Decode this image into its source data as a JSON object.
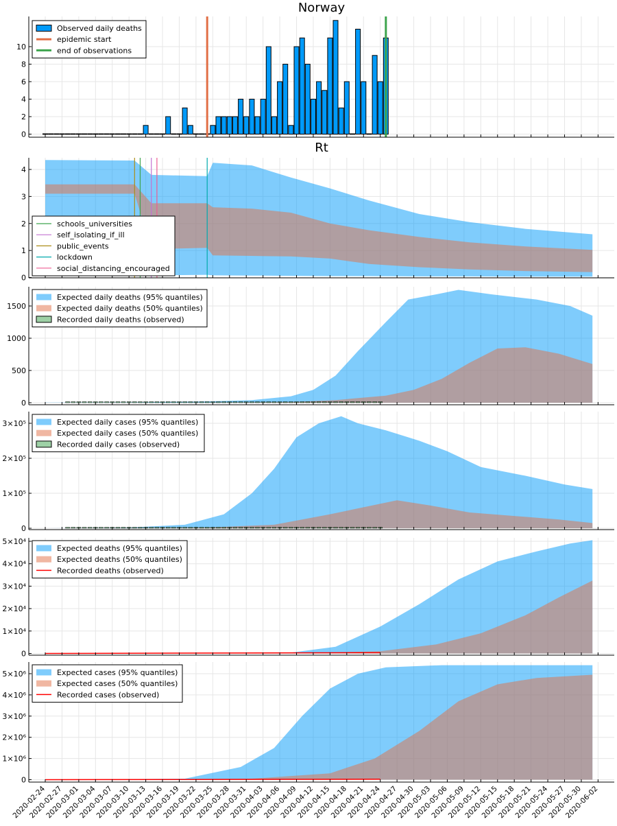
{
  "colors": {
    "blue": "#009af9",
    "salmon": "#e26f46",
    "green": "#3da44d",
    "red": "#ff0000",
    "brown_overlay": "#a78e8e",
    "grid": "#e6e6e6",
    "axis": "#000000"
  },
  "chart_data": [
    {
      "type": "bar",
      "title": "Norway",
      "legend": [
        "Observed daily deaths",
        "epidemic start",
        "end of observations"
      ],
      "legend_position": "top-left",
      "yticks": [
        "0",
        "2",
        "4",
        "6",
        "8",
        "10"
      ],
      "ylim": [
        0,
        14
      ],
      "x_start": "2020-02-24",
      "values": [
        0,
        0,
        0,
        0,
        0,
        0,
        0,
        0,
        0,
        0,
        0,
        0,
        0,
        0,
        0,
        0,
        0,
        0,
        1,
        0,
        0,
        0,
        2,
        0,
        0,
        3,
        1,
        0,
        0,
        0,
        1,
        2,
        2,
        2,
        2,
        4,
        2,
        4,
        2,
        4,
        10,
        2,
        6,
        8,
        1,
        10,
        11,
        8,
        4,
        6,
        5,
        11,
        13,
        3,
        6,
        0,
        12,
        6,
        0,
        9,
        6,
        11
      ],
      "epidemic_start": "2020-03-24",
      "end_of_observations": "2020-04-25"
    },
    {
      "type": "area",
      "title": "Rt",
      "legend": [
        "schools_universities",
        "self_isolating_if_ill",
        "public_events",
        "lockdown",
        "social_distancing_encouraged"
      ],
      "legend_position": "left",
      "yticks": [
        "0",
        "1",
        "2",
        "3",
        "4"
      ],
      "ylim": [
        0,
        4.45
      ],
      "interventions": [
        {
          "name": "schools_universities",
          "date": "2020-03-12",
          "color": "#3da44d"
        },
        {
          "name": "self_isolating_if_ill",
          "date": "2020-03-14",
          "color": "#c271d2"
        },
        {
          "name": "public_events",
          "date": "2020-03-11",
          "color": "#ac8d18"
        },
        {
          "name": "lockdown",
          "date": "2020-03-24",
          "color": "#00a9ad"
        },
        {
          "name": "social_distancing_encouraged",
          "date": "2020-03-15",
          "color": "#ed5d92"
        }
      ],
      "bands": [
        {
          "quantile": "95%",
          "dates": [
            "2020-02-24",
            "2020-03-11",
            "2020-03-14",
            "2020-03-24",
            "2020-03-25",
            "2020-04-01",
            "2020-04-08",
            "2020-04-15",
            "2020-04-22",
            "2020-05-01",
            "2020-05-10",
            "2020-05-20",
            "2020-06-01"
          ],
          "upper": [
            4.35,
            4.33,
            3.8,
            3.75,
            4.25,
            4.15,
            3.7,
            3.3,
            2.85,
            2.35,
            2.05,
            1.8,
            1.6
          ],
          "lower": [
            0.05,
            0.05,
            0.08,
            0.1,
            0.08,
            0.07,
            0.06,
            0.05,
            0.05,
            0.04,
            0.04,
            0.03,
            0.03
          ]
        },
        {
          "quantile": "50%",
          "dates": [
            "2020-02-24",
            "2020-03-11",
            "2020-03-14",
            "2020-03-24",
            "2020-03-25",
            "2020-04-01",
            "2020-04-08",
            "2020-04-15",
            "2020-04-22",
            "2020-05-01",
            "2020-05-10",
            "2020-05-20",
            "2020-06-01"
          ],
          "upper": [
            3.45,
            3.45,
            2.75,
            2.75,
            2.6,
            2.55,
            2.4,
            2.0,
            1.75,
            1.5,
            1.3,
            1.15,
            1.02
          ],
          "lower": [
            3.1,
            3.1,
            1.05,
            1.1,
            0.82,
            0.8,
            0.78,
            0.7,
            0.5,
            0.38,
            0.3,
            0.24,
            0.2
          ]
        }
      ]
    },
    {
      "type": "area",
      "legend": [
        "Expected daily deaths (95% quantiles)",
        "Expected daily deaths (50% quantiles)",
        "Recorded daily deaths (observed)"
      ],
      "legend_position": "top-left",
      "yticks": [
        "0",
        "500",
        "1000",
        "1500"
      ],
      "ylim": [
        0,
        1800
      ],
      "observed_dates": [
        "2020-02-24",
        "2020-04-25"
      ],
      "bands": [
        {
          "quantile": "95%",
          "dates": [
            "2020-02-24",
            "2020-03-10",
            "2020-03-24",
            "2020-04-01",
            "2020-04-08",
            "2020-04-12",
            "2020-04-16",
            "2020-04-20",
            "2020-04-25",
            "2020-04-29",
            "2020-05-04",
            "2020-05-08",
            "2020-05-14",
            "2020-05-22",
            "2020-05-28",
            "2020-06-01"
          ],
          "upper": [
            2,
            5,
            20,
            40,
            100,
            200,
            420,
            800,
            1250,
            1600,
            1680,
            1750,
            1680,
            1600,
            1500,
            1350
          ],
          "lower": [
            0,
            0,
            0,
            0,
            0,
            0,
            0,
            0,
            0,
            0,
            0,
            0,
            0,
            0,
            0,
            0
          ]
        },
        {
          "quantile": "50%",
          "dates": [
            "2020-02-24",
            "2020-03-24",
            "2020-04-08",
            "2020-04-16",
            "2020-04-25",
            "2020-04-30",
            "2020-05-05",
            "2020-05-10",
            "2020-05-15",
            "2020-05-20",
            "2020-05-26",
            "2020-06-01"
          ],
          "upper": [
            0,
            2,
            10,
            40,
            110,
            200,
            370,
            620,
            840,
            860,
            760,
            600
          ],
          "lower": [
            0,
            0,
            0,
            0,
            0,
            0,
            0,
            0,
            0,
            0,
            0,
            0
          ]
        }
      ]
    },
    {
      "type": "area",
      "legend": [
        "Expected daily cases (95% quantiles)",
        "Expected daily cases (50% quantiles)",
        "Recorded daily cases (observed)"
      ],
      "legend_position": "top-left",
      "yticks": [
        "0",
        "1×10⁵",
        "2×10⁵",
        "3×10⁵"
      ],
      "ylim": [
        0,
        335000
      ],
      "bands": [
        {
          "quantile": "95%",
          "dates": [
            "2020-02-24",
            "2020-03-10",
            "2020-03-20",
            "2020-03-27",
            "2020-04-01",
            "2020-04-05",
            "2020-04-09",
            "2020-04-13",
            "2020-04-17",
            "2020-04-20",
            "2020-04-25",
            "2020-05-01",
            "2020-05-06",
            "2020-05-12",
            "2020-05-20",
            "2020-05-27",
            "2020-06-01"
          ],
          "upper": [
            0,
            2000,
            10000,
            40000,
            100000,
            170000,
            260000,
            300000,
            320000,
            300000,
            280000,
            250000,
            220000,
            175000,
            150000,
            125000,
            112000
          ],
          "lower": [
            0,
            0,
            0,
            0,
            0,
            0,
            0,
            0,
            0,
            0,
            0,
            0,
            0,
            0,
            0,
            0,
            0
          ]
        },
        {
          "quantile": "50%",
          "dates": [
            "2020-02-24",
            "2020-03-24",
            "2020-04-05",
            "2020-04-15",
            "2020-04-21",
            "2020-04-27",
            "2020-05-03",
            "2020-05-10",
            "2020-05-18",
            "2020-05-26",
            "2020-06-01"
          ],
          "upper": [
            0,
            2000,
            10000,
            40000,
            60000,
            80000,
            65000,
            45000,
            35000,
            25000,
            15000
          ],
          "lower": [
            0,
            0,
            0,
            0,
            0,
            0,
            0,
            0,
            0,
            0,
            0
          ]
        }
      ]
    },
    {
      "type": "area",
      "legend": [
        "Expected deaths (95% quantiles)",
        "Expected deaths (50% quantiles)",
        "Recorded deaths (observed)"
      ],
      "legend_position": "top-left",
      "yticks": [
        "0",
        "1×10⁴",
        "2×10⁴",
        "3×10⁴",
        "4×10⁴",
        "5×10⁴"
      ],
      "ylim": [
        0,
        51000
      ],
      "observed_dates": [
        "2020-02-24",
        "2020-04-24"
      ],
      "observed_values": [
        0,
        210
      ],
      "bands": [
        {
          "quantile": "95%",
          "dates": [
            "2020-02-24",
            "2020-03-24",
            "2020-04-08",
            "2020-04-16",
            "2020-04-24",
            "2020-05-01",
            "2020-05-08",
            "2020-05-15",
            "2020-05-22",
            "2020-05-28",
            "2020-06-01"
          ],
          "upper": [
            0,
            50,
            400,
            3000,
            12000,
            22000,
            33000,
            41000,
            45500,
            49000,
            50500
          ],
          "lower": [
            0,
            0,
            0,
            0,
            0,
            0,
            0,
            0,
            0,
            0,
            0
          ]
        },
        {
          "quantile": "50%",
          "dates": [
            "2020-02-24",
            "2020-04-10",
            "2020-04-24",
            "2020-05-04",
            "2020-05-12",
            "2020-05-20",
            "2020-05-26",
            "2020-06-01"
          ],
          "upper": [
            0,
            100,
            1000,
            4000,
            9000,
            17000,
            25000,
            32500
          ],
          "lower": [
            0,
            0,
            0,
            0,
            0,
            0,
            0,
            0
          ]
        }
      ]
    },
    {
      "type": "area",
      "legend": [
        "Expected cases (95% quantiles)",
        "Expected cases (50% quantiles)",
        "Recorded cases (observed)"
      ],
      "legend_position": "top-left",
      "yticks": [
        "0",
        "1×10⁶",
        "2×10⁶",
        "3×10⁶",
        "4×10⁶",
        "5×10⁶"
      ],
      "ylim": [
        0,
        5500000
      ],
      "observed_dates": [
        "2020-02-24",
        "2020-04-24"
      ],
      "observed_values": [
        0,
        7000
      ],
      "bands": [
        {
          "quantile": "95%",
          "dates": [
            "2020-02-24",
            "2020-03-20",
            "2020-03-30",
            "2020-04-05",
            "2020-04-10",
            "2020-04-15",
            "2020-04-20",
            "2020-04-25",
            "2020-05-05",
            "2020-06-01"
          ],
          "upper": [
            0,
            50000,
            600000,
            1500000,
            3000000,
            4300000,
            5000000,
            5300000,
            5400000,
            5400000
          ],
          "lower": [
            0,
            0,
            0,
            0,
            0,
            0,
            0,
            0,
            0,
            0
          ]
        },
        {
          "quantile": "50%",
          "dates": [
            "2020-02-24",
            "2020-04-01",
            "2020-04-15",
            "2020-04-23",
            "2020-05-01",
            "2020-05-08",
            "2020-05-15",
            "2020-05-22",
            "2020-06-01"
          ],
          "upper": [
            0,
            50000,
            300000,
            1000000,
            2300000,
            3700000,
            4500000,
            4800000,
            4950000
          ],
          "lower": [
            0,
            0,
            0,
            0,
            0,
            0,
            0,
            0,
            0
          ]
        }
      ]
    }
  ],
  "x_axis": {
    "ticks": [
      "2020-02-24",
      "2020-02-27",
      "2020-03-01",
      "2020-03-04",
      "2020-03-07",
      "2020-03-10",
      "2020-03-13",
      "2020-03-16",
      "2020-03-19",
      "2020-03-22",
      "2020-03-25",
      "2020-03-28",
      "2020-03-31",
      "2020-04-03",
      "2020-04-06",
      "2020-04-09",
      "2020-04-12",
      "2020-04-15",
      "2020-04-18",
      "2020-04-21",
      "2020-04-24",
      "2020-04-27",
      "2020-04-30",
      "2020-05-03",
      "2020-05-06",
      "2020-05-09",
      "2020-05-12",
      "2020-05-15",
      "2020-05-18",
      "2020-05-21",
      "2020-05-24",
      "2020-05-27",
      "2020-05-30",
      "2020-06-02"
    ]
  }
}
